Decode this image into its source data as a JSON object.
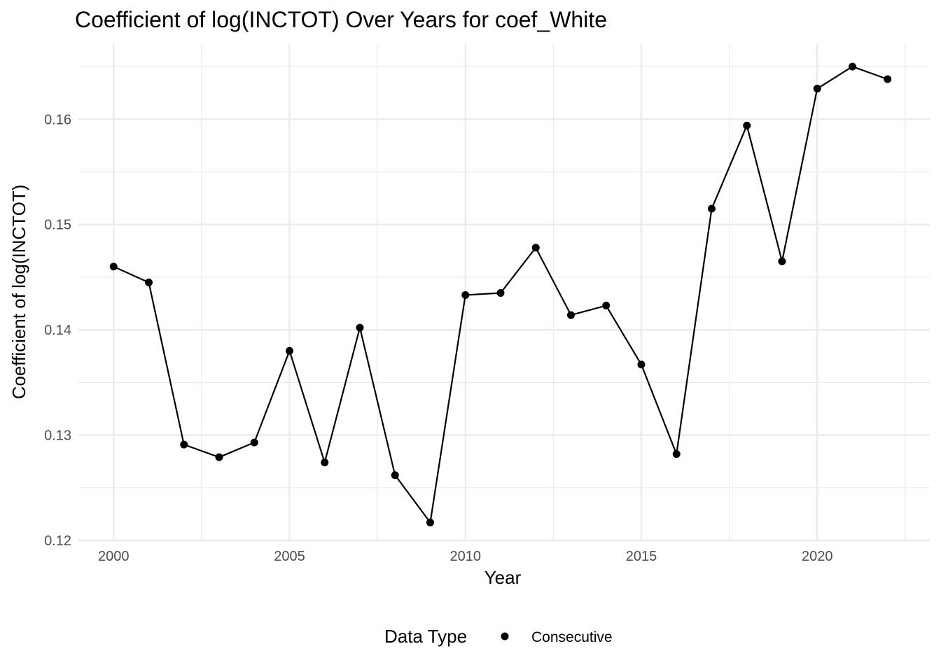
{
  "chart_data": {
    "type": "line",
    "title": "Coefficient of log(INCTOT) Over Years for coef_White",
    "xlabel": "Year",
    "ylabel": "Coefficient of log(INCTOT)",
    "xlim": [
      1999,
      2023.2
    ],
    "ylim": [
      0.12,
      0.1672
    ],
    "x_ticks": [
      2000,
      2005,
      2010,
      2015,
      2020
    ],
    "x_tick_labels": [
      "2000",
      "2005",
      "2010",
      "2015",
      "2020"
    ],
    "y_ticks": [
      0.12,
      0.13,
      0.14,
      0.15,
      0.16
    ],
    "y_tick_labels": [
      "0.12",
      "0.13",
      "0.14",
      "0.15",
      "0.16"
    ],
    "grid": true,
    "legend": {
      "title": "Data Type",
      "position": "bottom",
      "entries": [
        "Consecutive"
      ]
    },
    "series": [
      {
        "name": "Consecutive",
        "color": "#000000",
        "x": [
          2000,
          2001,
          2002,
          2003,
          2004,
          2005,
          2006,
          2007,
          2008,
          2009,
          2010,
          2011,
          2012,
          2013,
          2014,
          2015,
          2016,
          2017,
          2018,
          2019,
          2020,
          2021,
          2022
        ],
        "y": [
          0.146,
          0.1445,
          0.1291,
          0.1279,
          0.1293,
          0.138,
          0.1274,
          0.1402,
          0.1262,
          0.1217,
          0.1433,
          0.1435,
          0.1478,
          0.1414,
          0.1423,
          0.1367,
          0.1282,
          0.1515,
          0.1594,
          0.1465,
          0.1629,
          0.165,
          0.1638
        ]
      }
    ]
  }
}
